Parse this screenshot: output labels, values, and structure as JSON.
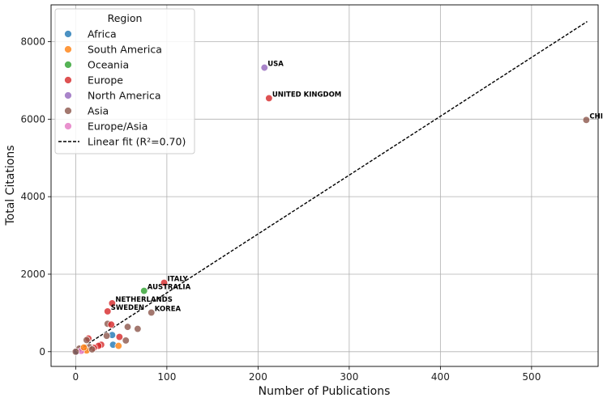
{
  "chart_data": {
    "type": "scatter",
    "xlabel": "Number of Publications",
    "ylabel": "Total Citations",
    "xlim": [
      -27,
      573
    ],
    "ylim": [
      -380,
      8950
    ],
    "x_ticks": [
      0,
      100,
      200,
      300,
      400,
      500
    ],
    "y_ticks": [
      0,
      2000,
      4000,
      6000,
      8000
    ],
    "grid": true,
    "legend_position": "top-left",
    "legend": {
      "title": "Region",
      "fit_label": "Linear fit (R²=0.70)"
    },
    "regions": [
      {
        "name": "Africa",
        "color": "#1f77b4"
      },
      {
        "name": "South America",
        "color": "#ff7f0e"
      },
      {
        "name": "Oceania",
        "color": "#2ca02c"
      },
      {
        "name": "Europe",
        "color": "#d62728"
      },
      {
        "name": "North America",
        "color": "#9467bd"
      },
      {
        "name": "Asia",
        "color": "#8c564b"
      },
      {
        "name": "Europe/Asia",
        "color": "#e377c2"
      }
    ],
    "fit_line": {
      "x": [
        0,
        561
      ],
      "y": [
        0,
        8520
      ]
    },
    "points": [
      {
        "x": 207,
        "y": 7330,
        "region": "North America",
        "label": "USA"
      },
      {
        "x": 212,
        "y": 6540,
        "region": "Europe",
        "label": "UNITED KINGDOM"
      },
      {
        "x": 560,
        "y": 5980,
        "region": "Asia",
        "label": "CHINA"
      },
      {
        "x": 97,
        "y": 1780,
        "region": "Europe",
        "label": "ITALY"
      },
      {
        "x": 75,
        "y": 1570,
        "region": "Oceania",
        "label": "AUSTRALIA"
      },
      {
        "x": 40,
        "y": 1250,
        "region": "Europe",
        "label": "NETHERLANDS"
      },
      {
        "x": 35,
        "y": 1040,
        "region": "Europe",
        "label": "SWEDEN"
      },
      {
        "x": 83,
        "y": 1010,
        "region": "Asia",
        "label": "KOREA"
      },
      {
        "x": 35,
        "y": 720,
        "region": "Asia",
        "label": ""
      },
      {
        "x": 39,
        "y": 700,
        "region": "Europe",
        "label": ""
      },
      {
        "x": 57,
        "y": 640,
        "region": "Asia",
        "label": ""
      },
      {
        "x": 68,
        "y": 590,
        "region": "Asia",
        "label": ""
      },
      {
        "x": 40,
        "y": 430,
        "region": "Africa",
        "label": ""
      },
      {
        "x": 48,
        "y": 380,
        "region": "Europe",
        "label": ""
      },
      {
        "x": 55,
        "y": 290,
        "region": "Asia",
        "label": ""
      },
      {
        "x": 14,
        "y": 340,
        "region": "Europe",
        "label": ""
      },
      {
        "x": 12,
        "y": 300,
        "region": "Asia",
        "label": ""
      },
      {
        "x": 34,
        "y": 410,
        "region": "Asia",
        "label": ""
      },
      {
        "x": 41,
        "y": 180,
        "region": "Africa",
        "label": ""
      },
      {
        "x": 47,
        "y": 150,
        "region": "South America",
        "label": ""
      },
      {
        "x": 28,
        "y": 180,
        "region": "Europe",
        "label": ""
      },
      {
        "x": 25,
        "y": 150,
        "region": "Europe",
        "label": ""
      },
      {
        "x": 20,
        "y": 100,
        "region": "Europe",
        "label": ""
      },
      {
        "x": 15,
        "y": 120,
        "region": "Asia",
        "label": ""
      },
      {
        "x": 10,
        "y": 80,
        "region": "Asia",
        "label": ""
      },
      {
        "x": 8,
        "y": 40,
        "region": "Europe",
        "label": ""
      },
      {
        "x": 12,
        "y": 30,
        "region": "South America",
        "label": ""
      },
      {
        "x": 5,
        "y": 60,
        "region": "Africa",
        "label": ""
      },
      {
        "x": 3,
        "y": 30,
        "region": "Asia",
        "label": ""
      },
      {
        "x": 2,
        "y": 10,
        "region": "Europe",
        "label": ""
      },
      {
        "x": 1,
        "y": 5,
        "region": "Africa",
        "label": ""
      },
      {
        "x": 4,
        "y": 80,
        "region": "Asia",
        "label": ""
      },
      {
        "x": 6,
        "y": 20,
        "region": "Europe/Asia",
        "label": ""
      },
      {
        "x": 9,
        "y": 110,
        "region": "South America",
        "label": ""
      },
      {
        "x": 18,
        "y": 60,
        "region": "Asia",
        "label": ""
      },
      {
        "x": 0,
        "y": 0,
        "region": "Asia",
        "label": ""
      }
    ]
  }
}
